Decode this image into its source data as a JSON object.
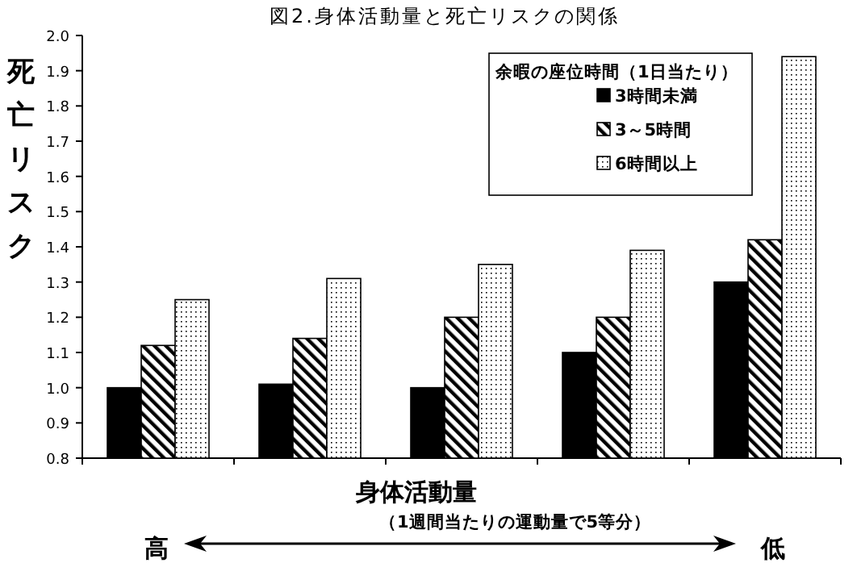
{
  "chart_data": {
    "type": "bar",
    "title": "図2.身体活動量と死亡リスクの関係",
    "xlabel": "身体活動量",
    "ylabel": "死亡リスク",
    "legend_title": "余暇の座位時間（1日当たり）",
    "annotations": [
      "（1週間当たりの運動量で5等分）",
      "高",
      "低"
    ],
    "categories": [
      null,
      null,
      null,
      null,
      null
    ],
    "series": [
      {
        "name": "3時間未満",
        "color": "#000000",
        "values": [
          1.0,
          1.01,
          1.0,
          1.1,
          1.3
        ]
      },
      {
        "name": "3～5時間",
        "color": "#000000",
        "values": [
          1.12,
          1.14,
          1.2,
          1.2,
          1.42
        ]
      },
      {
        "name": "6時間以上",
        "color": "#000000",
        "values": [
          1.25,
          1.31,
          1.35,
          1.39,
          1.94
        ]
      }
    ],
    "ylim": [
      0.8,
      2.0
    ],
    "yticks": [
      0.8,
      0.9,
      {
        "value": 1,
        "label": "1.0"
      },
      1.1,
      1.2,
      1.3,
      1.4,
      1.5,
      1.6,
      1.7,
      1.8,
      1.9,
      {
        "value": 2,
        "label": "2.0"
      }
    ],
    "grid": false,
    "legend": "top right"
  }
}
